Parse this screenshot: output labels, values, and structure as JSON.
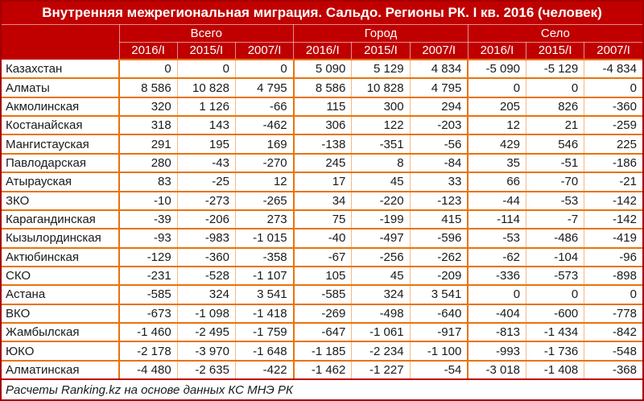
{
  "chart_data": {
    "type": "table",
    "title": "Внутренняя межрегиональная миграция. Сальдо. Регионы РК. I кв. 2016 (человек)",
    "column_groups": [
      "Всего",
      "Город",
      "Село"
    ],
    "period_headers": [
      "2016/I",
      "2015/I",
      "2007/I"
    ],
    "rows": [
      {
        "region": "Казахстан",
        "values": [
          "0",
          "0",
          "0",
          "5 090",
          "5 129",
          "4 834",
          "-5 090",
          "-5 129",
          "-4 834"
        ]
      },
      {
        "region": "Алматы",
        "values": [
          "8 586",
          "10 828",
          "4 795",
          "8 586",
          "10 828",
          "4 795",
          "0",
          "0",
          "0"
        ]
      },
      {
        "region": "Акмолинская",
        "values": [
          "320",
          "1 126",
          "-66",
          "115",
          "300",
          "294",
          "205",
          "826",
          "-360"
        ]
      },
      {
        "region": "Костанайская",
        "values": [
          "318",
          "143",
          "-462",
          "306",
          "122",
          "-203",
          "12",
          "21",
          "-259"
        ]
      },
      {
        "region": "Мангистауская",
        "values": [
          "291",
          "195",
          "169",
          "-138",
          "-351",
          "-56",
          "429",
          "546",
          "225"
        ]
      },
      {
        "region": "Павлодарская",
        "values": [
          "280",
          "-43",
          "-270",
          "245",
          "8",
          "-84",
          "35",
          "-51",
          "-186"
        ]
      },
      {
        "region": "Атырауская",
        "values": [
          "83",
          "-25",
          "12",
          "17",
          "45",
          "33",
          "66",
          "-70",
          "-21"
        ]
      },
      {
        "region": "ЗКО",
        "values": [
          "-10",
          "-273",
          "-265",
          "34",
          "-220",
          "-123",
          "-44",
          "-53",
          "-142"
        ]
      },
      {
        "region": "Карагандинская",
        "values": [
          "-39",
          "-206",
          "273",
          "75",
          "-199",
          "415",
          "-114",
          "-7",
          "-142"
        ]
      },
      {
        "region": "Кызылординская",
        "values": [
          "-93",
          "-983",
          "-1 015",
          "-40",
          "-497",
          "-596",
          "-53",
          "-486",
          "-419"
        ]
      },
      {
        "region": "Актюбинская",
        "values": [
          "-129",
          "-360",
          "-358",
          "-67",
          "-256",
          "-262",
          "-62",
          "-104",
          "-96"
        ]
      },
      {
        "region": "СКО",
        "values": [
          "-231",
          "-528",
          "-1 107",
          "105",
          "45",
          "-209",
          "-336",
          "-573",
          "-898"
        ]
      },
      {
        "region": "Астана",
        "values": [
          "-585",
          "324",
          "3 541",
          "-585",
          "324",
          "3 541",
          "0",
          "0",
          "0"
        ]
      },
      {
        "region": "ВКО",
        "values": [
          "-673",
          "-1 098",
          "-1 418",
          "-269",
          "-498",
          "-640",
          "-404",
          "-600",
          "-778"
        ]
      },
      {
        "region": "Жамбылская",
        "values": [
          "-1 460",
          "-2 495",
          "-1 759",
          "-647",
          "-1 061",
          "-917",
          "-813",
          "-1 434",
          "-842"
        ]
      },
      {
        "region": "ЮКО",
        "values": [
          "-2 178",
          "-3 970",
          "-1 648",
          "-1 185",
          "-2 234",
          "-1 100",
          "-993",
          "-1 736",
          "-548"
        ]
      },
      {
        "region": "Алматинская",
        "values": [
          "-4 480",
          "-2 635",
          "-422",
          "-1 462",
          "-1 227",
          "-54",
          "-3 018",
          "-1 408",
          "-368"
        ]
      }
    ],
    "source_note": "Расчеты Ranking.kz на основе данных КС МНЭ РК",
    "colors": {
      "header_bg": "#C00000",
      "header_text": "#FFFFFF",
      "grid_strong": "#E8730C",
      "grid_light": "#F5B880",
      "outer_border": "#A40000",
      "body_text": "#1A1A1A"
    }
  }
}
